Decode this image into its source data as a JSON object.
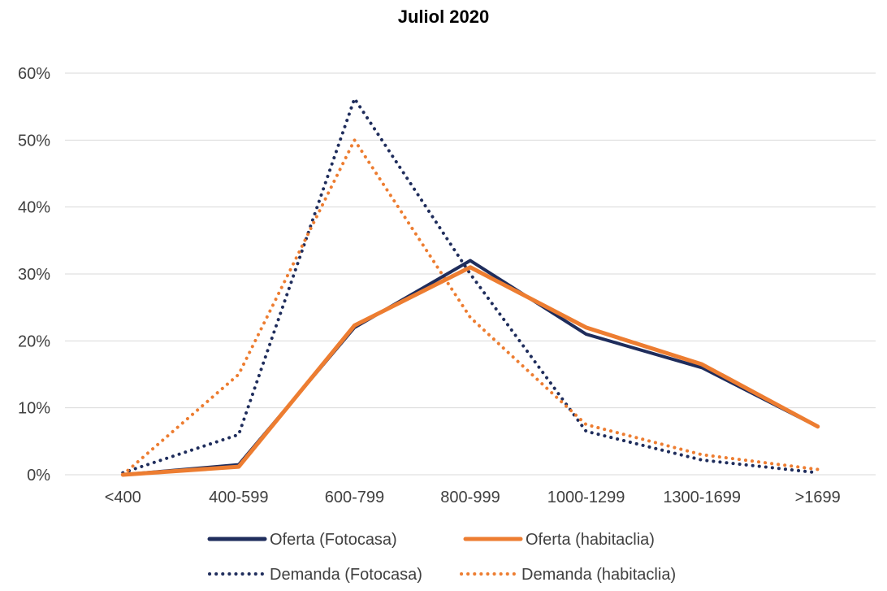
{
  "chart_data": {
    "type": "line",
    "title": "Juliol 2020",
    "xlabel": "",
    "ylabel": "",
    "categories": [
      "<400",
      "400-599",
      "600-799",
      "800-999",
      "1000-1299",
      "1300-1699",
      ">1699"
    ],
    "ylim": [
      0,
      0.6
    ],
    "yticks": [
      0,
      0.1,
      0.2,
      0.3,
      0.4,
      0.5,
      0.6
    ],
    "ytick_labels": [
      "0%",
      "10%",
      "20%",
      "30%",
      "40%",
      "50%",
      "60%"
    ],
    "grid": true,
    "legend_position": "bottom",
    "series": [
      {
        "name": "Oferta (Fotocasa)",
        "color": "#1f2d5c",
        "style": "solid",
        "values": [
          0.0,
          0.015,
          0.22,
          0.32,
          0.21,
          0.16,
          0.072
        ]
      },
      {
        "name": "Oferta (habitaclia)",
        "color": "#ed7d31",
        "style": "solid",
        "values": [
          0.0,
          0.012,
          0.223,
          0.31,
          0.22,
          0.165,
          0.072
        ]
      },
      {
        "name": "Demanda (Fotocasa)",
        "color": "#1f2d5c",
        "style": "dotted",
        "values": [
          0.003,
          0.06,
          0.562,
          0.3,
          0.065,
          0.022,
          0.003
        ]
      },
      {
        "name": "Demanda (habitaclia)",
        "color": "#ed7d31",
        "style": "dotted",
        "values": [
          0.0,
          0.15,
          0.5,
          0.235,
          0.075,
          0.03,
          0.008
        ]
      }
    ]
  }
}
